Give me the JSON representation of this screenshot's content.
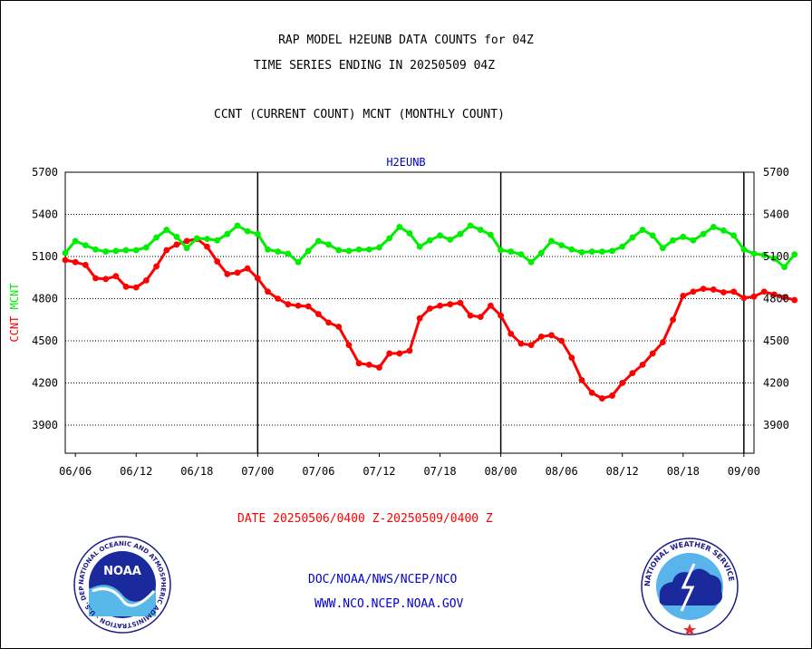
{
  "header": {
    "title_line1": "RAP MODEL H2EUNB DATA COUNTS for 04Z",
    "title_line2": "TIME SERIES ENDING IN 20250509 04Z",
    "subtitle": "CCNT (CURRENT COUNT) MCNT (MONTHLY COUNT)"
  },
  "footer": {
    "date_range": "DATE 20250506/0400 Z-20250509/0400 Z",
    "credit_line1": "DOC/NOAA/NWS/NCEP/NCO",
    "credit_line2": "WWW.NCO.NCEP.NOAA.GOV"
  },
  "logos": {
    "noaa_ring_text": "NATIONAL OCEANIC AND ATMOSPHERIC ADMINISTRATION · U.S. DEPARTMENT OF COMMERCE ·",
    "noaa_center": "NOAA",
    "nws_ring_text": "NATIONAL WEATHER SERVICE"
  },
  "chart_data": {
    "type": "line",
    "panel_title": "H2EUNB",
    "ylabel_left": [
      "CCNT",
      "MCNT"
    ],
    "ylim": [
      3700,
      5700
    ],
    "yticks": [
      3900,
      4200,
      4500,
      4800,
      5100,
      5400,
      5700
    ],
    "x_index_range": [
      0,
      68
    ],
    "xticks": [
      {
        "i": 1,
        "label": "06/06"
      },
      {
        "i": 7,
        "label": "06/12"
      },
      {
        "i": 13,
        "label": "06/18"
      },
      {
        "i": 19,
        "label": "07/00"
      },
      {
        "i": 25,
        "label": "07/06"
      },
      {
        "i": 31,
        "label": "07/12"
      },
      {
        "i": 37,
        "label": "07/18"
      },
      {
        "i": 43,
        "label": "08/00"
      },
      {
        "i": 49,
        "label": "08/06"
      },
      {
        "i": 55,
        "label": "08/12"
      },
      {
        "i": 61,
        "label": "08/18"
      },
      {
        "i": 67,
        "label": "09/00"
      }
    ],
    "day_boundaries": [
      19,
      43,
      67
    ],
    "grid": true,
    "colors": {
      "ccnt": "#ff0000",
      "mcnt": "#00ee00",
      "axis": "#000000",
      "title": "#0000cc"
    },
    "series": [
      {
        "name": "CCNT",
        "color": "#ff0000",
        "values": [
          5075,
          5060,
          5040,
          4945,
          4940,
          4960,
          4885,
          4880,
          4930,
          5030,
          5145,
          5185,
          5210,
          5225,
          5170,
          5065,
          4975,
          4985,
          5015,
          4945,
          4850,
          4800,
          4760,
          4750,
          4745,
          4690,
          4630,
          4600,
          4470,
          4340,
          4330,
          4310,
          4410,
          4410,
          4430,
          4660,
          4730,
          4750,
          4760,
          4770,
          4680,
          4670,
          4750,
          4680,
          4550,
          4480,
          4470,
          4530,
          4540,
          4500,
          4380,
          4220,
          4130,
          4090,
          4110,
          4200,
          4270,
          4330,
          4410,
          4490,
          4650,
          4820,
          4850,
          4870,
          4865,
          4845,
          4850,
          4805,
          4815,
          4850,
          4830,
          4810,
          4790
        ]
      },
      {
        "name": "MCNT",
        "color": "#00ee00",
        "values": [
          5125,
          5210,
          5180,
          5150,
          5135,
          5140,
          5145,
          5145,
          5165,
          5235,
          5290,
          5240,
          5160,
          5230,
          5225,
          5215,
          5260,
          5320,
          5280,
          5260,
          5150,
          5135,
          5120,
          5060,
          5140,
          5210,
          5185,
          5145,
          5140,
          5150,
          5150,
          5165,
          5230,
          5310,
          5265,
          5170,
          5215,
          5250,
          5220,
          5260,
          5320,
          5290,
          5255,
          5145,
          5135,
          5115,
          5060,
          5125,
          5210,
          5180,
          5150,
          5130,
          5135,
          5135,
          5140,
          5170,
          5235,
          5290,
          5250,
          5160,
          5215,
          5240,
          5215,
          5260,
          5310,
          5285,
          5250,
          5150,
          5120,
          5110,
          5085,
          5025,
          5115
        ]
      }
    ]
  }
}
